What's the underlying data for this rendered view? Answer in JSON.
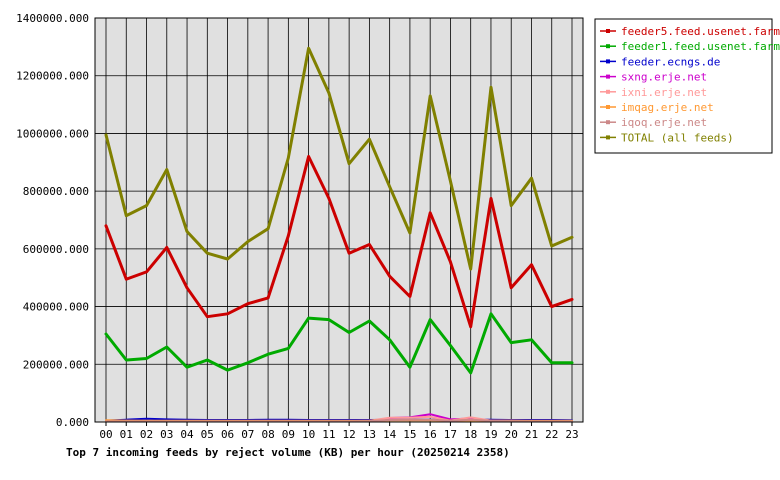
{
  "chart_data": {
    "type": "line",
    "title": "Top 7 incoming feeds by reject volume (KB) per hour (20250214 2358)",
    "xlabel": "",
    "ylabel": "",
    "categories": [
      "00",
      "01",
      "02",
      "03",
      "04",
      "05",
      "06",
      "07",
      "08",
      "09",
      "10",
      "11",
      "12",
      "13",
      "14",
      "15",
      "16",
      "17",
      "18",
      "19",
      "20",
      "21",
      "22",
      "23"
    ],
    "ylim": [
      0,
      1400000
    ],
    "yticks": [
      "0.000",
      "200000.000",
      "400000.000",
      "600000.000",
      "800000.000",
      "1000000.000",
      "1200000.000",
      "1400000.000"
    ],
    "ytick_values": [
      0,
      200000,
      400000,
      600000,
      800000,
      1000000,
      1200000,
      1400000
    ],
    "grid": true,
    "legend_position": "top-right",
    "series": [
      {
        "name": "feeder5.feed.usenet.farm",
        "color": "#cc0000",
        "values": [
          680000,
          495000,
          520000,
          605000,
          465000,
          365000,
          375000,
          410000,
          430000,
          645000,
          920000,
          775000,
          585000,
          615000,
          505000,
          435000,
          725000,
          555000,
          330000,
          775000,
          465000,
          545000,
          400000,
          425000
        ]
      },
      {
        "name": "feeder1.feed.usenet.farm",
        "color": "#00aa00",
        "values": [
          305000,
          215000,
          220000,
          260000,
          190000,
          215000,
          180000,
          205000,
          235000,
          255000,
          360000,
          355000,
          310000,
          350000,
          285000,
          190000,
          355000,
          265000,
          170000,
          375000,
          275000,
          285000,
          205000,
          205000
        ]
      },
      {
        "name": "feeder.ecngs.de",
        "color": "#0000cc",
        "values": [
          5000,
          8000,
          11000,
          9000,
          8000,
          7000,
          7000,
          7000,
          8000,
          8000,
          7000,
          7000,
          7000,
          7000,
          8000,
          8000,
          8000,
          7000,
          8000,
          8000,
          7000,
          7000,
          7000,
          6000
        ]
      },
      {
        "name": "sxng.erje.net",
        "color": "#cc00cc",
        "values": [
          2000,
          2000,
          3000,
          2000,
          2000,
          2000,
          2000,
          2000,
          2000,
          2000,
          2000,
          2000,
          2000,
          2000,
          14000,
          16000,
          27000,
          9000,
          12000,
          5000,
          4000,
          2000,
          2000,
          2000
        ]
      },
      {
        "name": "ixni.erje.net",
        "color": "#ff9999",
        "values": [
          3000,
          3000,
          3000,
          3000,
          3000,
          3000,
          3000,
          3000,
          3000,
          3000,
          3000,
          3000,
          3000,
          4000,
          15000,
          15000,
          18000,
          5000,
          16000,
          5000,
          4000,
          3000,
          3000,
          3000
        ]
      },
      {
        "name": "imqag.erje.net",
        "color": "#ff9933",
        "values": [
          6000,
          5000,
          4000,
          4000,
          4000,
          4000,
          4000,
          4000,
          4000,
          4000,
          4000,
          4000,
          4000,
          4000,
          6000,
          6000,
          6000,
          5000,
          6000,
          5000,
          5000,
          4000,
          4000,
          4000
        ]
      },
      {
        "name": "iqoq.erje.net",
        "color": "#cc8888",
        "values": [
          2000,
          2000,
          2000,
          2000,
          2000,
          2000,
          2000,
          2000,
          2000,
          2000,
          2000,
          2000,
          2000,
          3000,
          7000,
          8000,
          8000,
          4000,
          8000,
          4000,
          3000,
          2000,
          2000,
          2000
        ]
      },
      {
        "name": "TOTAL (all feeds)",
        "color": "#808000",
        "values": [
          995000,
          715000,
          750000,
          875000,
          660000,
          585000,
          565000,
          625000,
          670000,
          915000,
          1295000,
          1140000,
          895000,
          980000,
          815000,
          655000,
          1130000,
          835000,
          530000,
          1160000,
          750000,
          845000,
          610000,
          640000
        ]
      }
    ]
  }
}
